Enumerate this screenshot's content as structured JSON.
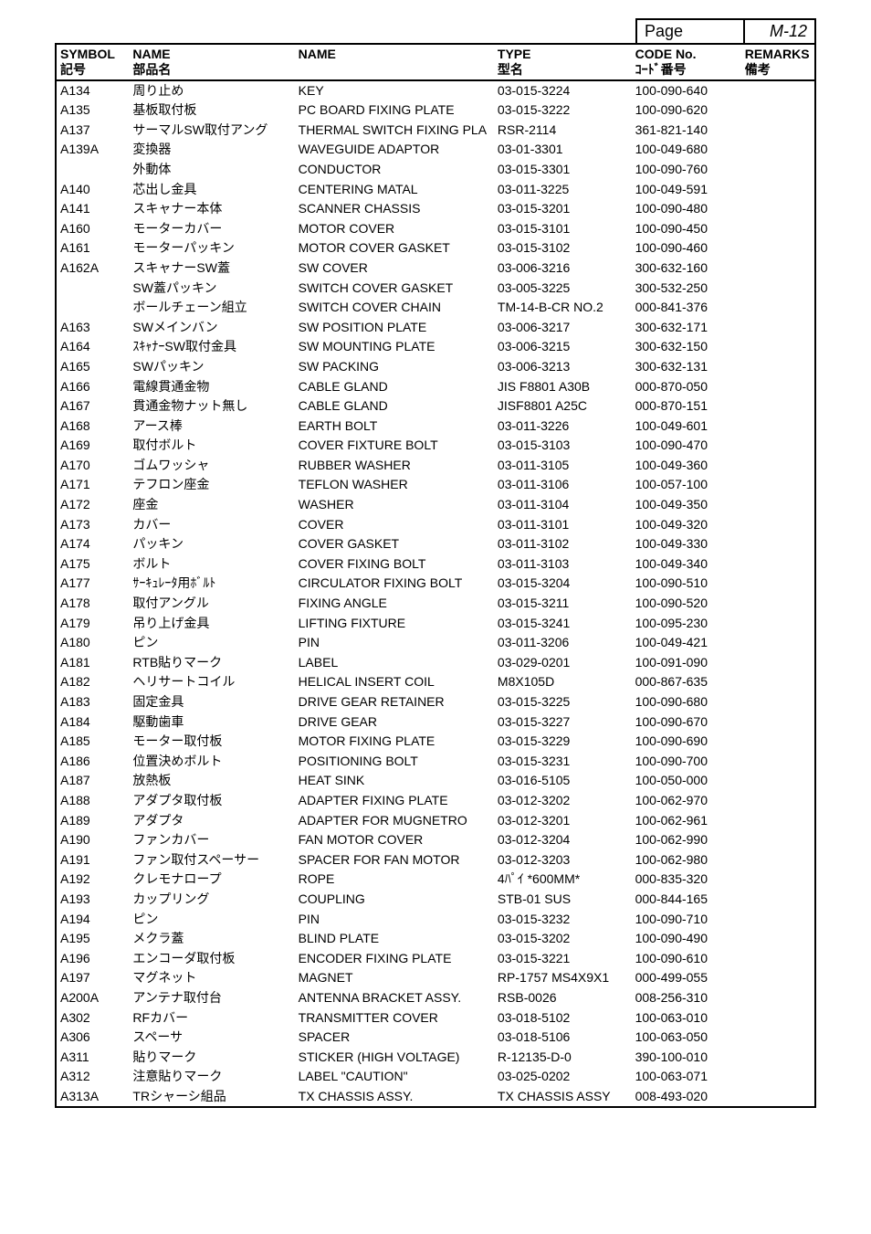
{
  "page_label": "Page",
  "m_label": "M-12",
  "headers": {
    "symbol": "SYMBOL",
    "symbol_jp": "記号",
    "name_jp_h": "NAME",
    "name_jp_sub": "部品名",
    "name_en_h": "NAME",
    "type_h": "TYPE",
    "type_sub": "型名",
    "code_h": "CODE No.",
    "code_sub": "ｺｰﾄﾞ番号",
    "remarks_h": "REMARKS",
    "remarks_sub": "備考"
  },
  "rows": [
    {
      "symbol": "A134",
      "name_jp": "周り止め",
      "name_en": "KEY",
      "type": "03-015-3224",
      "code": "100-090-640",
      "remarks": ""
    },
    {
      "symbol": "A135",
      "name_jp": "基板取付板",
      "name_en": "PC BOARD FIXING PLATE",
      "type": "03-015-3222",
      "code": "100-090-620",
      "remarks": ""
    },
    {
      "symbol": "A137",
      "name_jp": "サーマルSW取付アング",
      "name_en": "THERMAL SWITCH FIXING PLA",
      "type": "RSR-2114",
      "code": "361-821-140",
      "remarks": ""
    },
    {
      "symbol": "A139A",
      "name_jp": "変換器",
      "name_en": "WAVEGUIDE ADAPTOR",
      "type": "03-01-3301",
      "code": "100-049-680",
      "remarks": ""
    },
    {
      "symbol": "",
      "name_jp": "外動体",
      "name_en": "CONDUCTOR",
      "type": "03-015-3301",
      "code": "100-090-760",
      "remarks": ""
    },
    {
      "symbol": "A140",
      "name_jp": "芯出し金具",
      "name_en": "CENTERING MATAL",
      "type": "03-011-3225",
      "code": "100-049-591",
      "remarks": ""
    },
    {
      "symbol": "A141",
      "name_jp": "スキャナー本体",
      "name_en": "SCANNER CHASSIS",
      "type": "03-015-3201",
      "code": "100-090-480",
      "remarks": ""
    },
    {
      "symbol": "A160",
      "name_jp": "モーターカバー",
      "name_en": "MOTOR COVER",
      "type": "03-015-3101",
      "code": "100-090-450",
      "remarks": ""
    },
    {
      "symbol": "A161",
      "name_jp": "モーターパッキン",
      "name_en": "MOTOR COVER GASKET",
      "type": "03-015-3102",
      "code": "100-090-460",
      "remarks": ""
    },
    {
      "symbol": "A162A",
      "name_jp": "スキャナーSW蓋",
      "name_en": "SW COVER",
      "type": "03-006-3216",
      "code": "300-632-160",
      "remarks": ""
    },
    {
      "symbol": "",
      "name_jp": "SW蓋パッキン",
      "name_en": "SWITCH COVER GASKET",
      "type": "03-005-3225",
      "code": "300-532-250",
      "remarks": ""
    },
    {
      "symbol": "",
      "name_jp": "ボールチェーン組立",
      "name_en": "SWITCH COVER CHAIN",
      "type": "TM-14-B-CR NO.2",
      "code": "000-841-376",
      "remarks": ""
    },
    {
      "symbol": "A163",
      "name_jp": "SWメインバン",
      "name_en": "SW POSITION PLATE",
      "type": "03-006-3217",
      "code": "300-632-171",
      "remarks": ""
    },
    {
      "symbol": "A164",
      "name_jp": "ｽｷｬﾅｰSW取付金具",
      "name_en": "SW MOUNTING PLATE",
      "type": "03-006-3215",
      "code": "300-632-150",
      "remarks": ""
    },
    {
      "symbol": "A165",
      "name_jp": "SWパッキン",
      "name_en": "SW PACKING",
      "type": "03-006-3213",
      "code": "300-632-131",
      "remarks": ""
    },
    {
      "symbol": "A166",
      "name_jp": "電線貫通金物",
      "name_en": "CABLE GLAND",
      "type": "JIS F8801 A30B",
      "code": "000-870-050",
      "remarks": ""
    },
    {
      "symbol": "A167",
      "name_jp": "貫通金物ナット無し",
      "name_en": "CABLE GLAND",
      "type": "JISF8801 A25C",
      "code": "000-870-151",
      "remarks": ""
    },
    {
      "symbol": "A168",
      "name_jp": "アース棒",
      "name_en": "EARTH BOLT",
      "type": "03-011-3226",
      "code": "100-049-601",
      "remarks": ""
    },
    {
      "symbol": "A169",
      "name_jp": "取付ボルト",
      "name_en": "COVER FIXTURE BOLT",
      "type": "03-015-3103",
      "code": "100-090-470",
      "remarks": ""
    },
    {
      "symbol": "A170",
      "name_jp": "ゴムワッシャ",
      "name_en": "RUBBER WASHER",
      "type": "03-011-3105",
      "code": "100-049-360",
      "remarks": ""
    },
    {
      "symbol": "A171",
      "name_jp": "テフロン座金",
      "name_en": "TEFLON WASHER",
      "type": "03-011-3106",
      "code": "100-057-100",
      "remarks": ""
    },
    {
      "symbol": "A172",
      "name_jp": "座金",
      "name_en": "WASHER",
      "type": "03-011-3104",
      "code": "100-049-350",
      "remarks": ""
    },
    {
      "symbol": "A173",
      "name_jp": "カバー",
      "name_en": "COVER",
      "type": "03-011-3101",
      "code": "100-049-320",
      "remarks": ""
    },
    {
      "symbol": "A174",
      "name_jp": "パッキン",
      "name_en": "COVER GASKET",
      "type": "03-011-3102",
      "code": "100-049-330",
      "remarks": ""
    },
    {
      "symbol": "A175",
      "name_jp": "ボルト",
      "name_en": "COVER FIXING BOLT",
      "type": "03-011-3103",
      "code": "100-049-340",
      "remarks": ""
    },
    {
      "symbol": "A177",
      "name_jp": "ｻｰｷｭﾚｰﾀ用ﾎﾞﾙﾄ",
      "name_en": "CIRCULATOR FIXING BOLT",
      "type": "03-015-3204",
      "code": "100-090-510",
      "remarks": ""
    },
    {
      "symbol": "A178",
      "name_jp": "取付アングル",
      "name_en": "FIXING ANGLE",
      "type": "03-015-3211",
      "code": "100-090-520",
      "remarks": ""
    },
    {
      "symbol": "A179",
      "name_jp": "吊り上げ金具",
      "name_en": "LIFTING FIXTURE",
      "type": "03-015-3241",
      "code": "100-095-230",
      "remarks": ""
    },
    {
      "symbol": "A180",
      "name_jp": "ピン",
      "name_en": "PIN",
      "type": "03-011-3206",
      "code": "100-049-421",
      "remarks": ""
    },
    {
      "symbol": "A181",
      "name_jp": "RTB貼りマーク",
      "name_en": "LABEL",
      "type": "03-029-0201",
      "code": "100-091-090",
      "remarks": ""
    },
    {
      "symbol": "A182",
      "name_jp": "ヘリサートコイル",
      "name_en": "HELICAL INSERT COIL",
      "type": "M8X105D",
      "code": "000-867-635",
      "remarks": ""
    },
    {
      "symbol": "A183",
      "name_jp": "固定金具",
      "name_en": "DRIVE GEAR RETAINER",
      "type": "03-015-3225",
      "code": "100-090-680",
      "remarks": ""
    },
    {
      "symbol": "A184",
      "name_jp": "駆動歯車",
      "name_en": "DRIVE GEAR",
      "type": "03-015-3227",
      "code": "100-090-670",
      "remarks": ""
    },
    {
      "symbol": "A185",
      "name_jp": "モーター取付板",
      "name_en": "MOTOR FIXING PLATE",
      "type": "03-015-3229",
      "code": "100-090-690",
      "remarks": ""
    },
    {
      "symbol": "A186",
      "name_jp": "位置決めボルト",
      "name_en": "POSITIONING BOLT",
      "type": "03-015-3231",
      "code": "100-090-700",
      "remarks": ""
    },
    {
      "symbol": "A187",
      "name_jp": "放熱板",
      "name_en": "HEAT SINK",
      "type": "03-016-5105",
      "code": "100-050-000",
      "remarks": ""
    },
    {
      "symbol": "A188",
      "name_jp": "アダプタ取付板",
      "name_en": "ADAPTER FIXING PLATE",
      "type": "03-012-3202",
      "code": "100-062-970",
      "remarks": ""
    },
    {
      "symbol": "A189",
      "name_jp": "アダプタ",
      "name_en": "ADAPTER FOR MUGNETRO",
      "type": "03-012-3201",
      "code": "100-062-961",
      "remarks": ""
    },
    {
      "symbol": "A190",
      "name_jp": "ファンカバー",
      "name_en": "FAN MOTOR COVER",
      "type": "03-012-3204",
      "code": "100-062-990",
      "remarks": ""
    },
    {
      "symbol": "A191",
      "name_jp": "ファン取付スペーサー",
      "name_en": "SPACER FOR FAN MOTOR",
      "type": "03-012-3203",
      "code": "100-062-980",
      "remarks": ""
    },
    {
      "symbol": "A192",
      "name_jp": "クレモナロープ",
      "name_en": "ROPE",
      "type": "4ﾊﾟｲ  *600MM*",
      "code": "000-835-320",
      "remarks": ""
    },
    {
      "symbol": "A193",
      "name_jp": "カップリング",
      "name_en": "COUPLING",
      "type": "STB-01 SUS",
      "code": "000-844-165",
      "remarks": ""
    },
    {
      "symbol": "A194",
      "name_jp": "ピン",
      "name_en": "PIN",
      "type": "03-015-3232",
      "code": "100-090-710",
      "remarks": ""
    },
    {
      "symbol": "A195",
      "name_jp": "メクラ蓋",
      "name_en": "BLIND PLATE",
      "type": "03-015-3202",
      "code": "100-090-490",
      "remarks": ""
    },
    {
      "symbol": "A196",
      "name_jp": "エンコーダ取付板",
      "name_en": "ENCODER FIXING PLATE",
      "type": "03-015-3221",
      "code": "100-090-610",
      "remarks": ""
    },
    {
      "symbol": "A197",
      "name_jp": "マグネット",
      "name_en": "MAGNET",
      "type": "RP-1757 MS4X9X1",
      "code": "000-499-055",
      "remarks": ""
    },
    {
      "symbol": "A200A",
      "name_jp": "アンテナ取付台",
      "name_en": "ANTENNA BRACKET ASSY.",
      "type": "RSB-0026",
      "code": "008-256-310",
      "remarks": ""
    },
    {
      "symbol": "A302",
      "name_jp": "RFカバー",
      "name_en": "TRANSMITTER COVER",
      "type": "03-018-5102",
      "code": "100-063-010",
      "remarks": ""
    },
    {
      "symbol": "A306",
      "name_jp": "スペーサ",
      "name_en": "SPACER",
      "type": "03-018-5106",
      "code": "100-063-050",
      "remarks": ""
    },
    {
      "symbol": "A311",
      "name_jp": "貼りマーク",
      "name_en": "STICKER (HIGH VOLTAGE)",
      "type": "R-12135-D-0",
      "code": "390-100-010",
      "remarks": ""
    },
    {
      "symbol": "A312",
      "name_jp": "注意貼りマーク",
      "name_en": "LABEL \"CAUTION\"",
      "type": "03-025-0202",
      "code": "100-063-071",
      "remarks": ""
    },
    {
      "symbol": "A313A",
      "name_jp": "TRシャーシ組品",
      "name_en": "TX CHASSIS ASSY.",
      "type": "TX CHASSIS ASSY",
      "code": "008-493-020",
      "remarks": ""
    }
  ]
}
